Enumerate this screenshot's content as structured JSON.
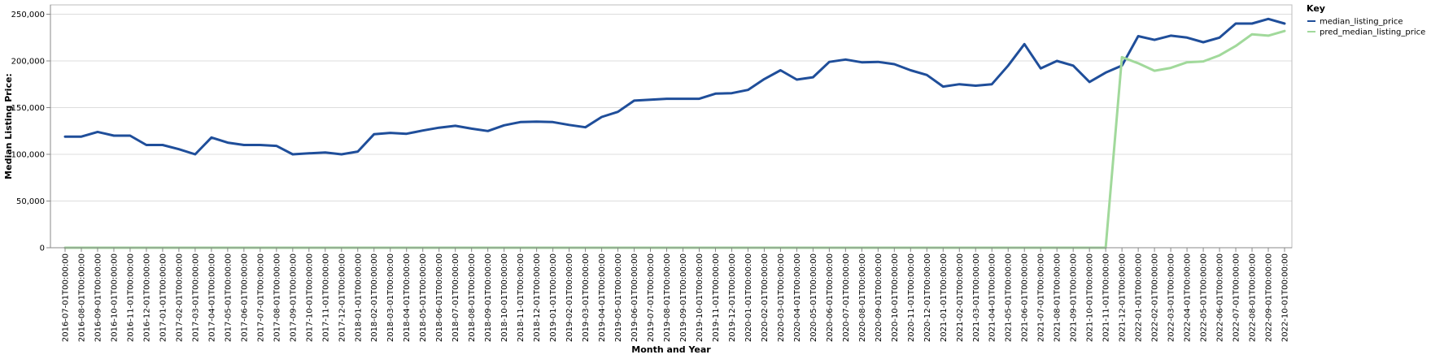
{
  "chart_data": {
    "type": "line",
    "xlabel": "Month and Year",
    "ylabel": "Median Listing Price:",
    "ylim": [
      0,
      260000
    ],
    "yticks": [
      0,
      50000,
      100000,
      150000,
      200000,
      250000
    ],
    "ytick_labels": [
      "0",
      "50,000",
      "100,000",
      "150,000",
      "200,000",
      "250,000"
    ],
    "grid": true,
    "legend": {
      "title": "Key",
      "placement": "top-right"
    },
    "categories": [
      "2016-07-01T00:00:00",
      "2016-08-01T00:00:00",
      "2016-09-01T00:00:00",
      "2016-10-01T00:00:00",
      "2016-11-01T00:00:00",
      "2016-12-01T00:00:00",
      "2017-01-01T00:00:00",
      "2017-02-01T00:00:00",
      "2017-03-01T00:00:00",
      "2017-04-01T00:00:00",
      "2017-05-01T00:00:00",
      "2017-06-01T00:00:00",
      "2017-07-01T00:00:00",
      "2017-08-01T00:00:00",
      "2017-09-01T00:00:00",
      "2017-10-01T00:00:00",
      "2017-11-01T00:00:00",
      "2017-12-01T00:00:00",
      "2018-01-01T00:00:00",
      "2018-02-01T00:00:00",
      "2018-03-01T00:00:00",
      "2018-04-01T00:00:00",
      "2018-05-01T00:00:00",
      "2018-06-01T00:00:00",
      "2018-07-01T00:00:00",
      "2018-08-01T00:00:00",
      "2018-09-01T00:00:00",
      "2018-10-01T00:00:00",
      "2018-11-01T00:00:00",
      "2018-12-01T00:00:00",
      "2019-01-01T00:00:00",
      "2019-02-01T00:00:00",
      "2019-03-01T00:00:00",
      "2019-04-01T00:00:00",
      "2019-05-01T00:00:00",
      "2019-06-01T00:00:00",
      "2019-07-01T00:00:00",
      "2019-08-01T00:00:00",
      "2019-09-01T00:00:00",
      "2019-10-01T00:00:00",
      "2019-11-01T00:00:00",
      "2019-12-01T00:00:00",
      "2020-01-01T00:00:00",
      "2020-02-01T00:00:00",
      "2020-03-01T00:00:00",
      "2020-04-01T00:00:00",
      "2020-05-01T00:00:00",
      "2020-06-01T00:00:00",
      "2020-07-01T00:00:00",
      "2020-08-01T00:00:00",
      "2020-09-01T00:00:00",
      "2020-10-01T00:00:00",
      "2020-11-01T00:00:00",
      "2020-12-01T00:00:00",
      "2021-01-01T00:00:00",
      "2021-02-01T00:00:00",
      "2021-03-01T00:00:00",
      "2021-04-01T00:00:00",
      "2021-05-01T00:00:00",
      "2021-06-01T00:00:00",
      "2021-07-01T00:00:00",
      "2021-08-01T00:00:00",
      "2021-09-01T00:00:00",
      "2021-10-01T00:00:00",
      "2021-11-01T00:00:00",
      "2021-12-01T00:00:00",
      "2022-01-01T00:00:00",
      "2022-02-01T00:00:00",
      "2022-03-01T00:00:00",
      "2022-04-01T00:00:00",
      "2022-05-01T00:00:00",
      "2022-06-01T00:00:00",
      "2022-07-01T00:00:00",
      "2022-08-01T00:00:00",
      "2022-09-01T00:00:00",
      "2022-10-01T00:00:00"
    ],
    "series": [
      {
        "name": "median_listing_price",
        "color": "#1f4e9a",
        "values": [
          119000,
          119000,
          124000,
          120000,
          120000,
          110000,
          110000,
          105500,
          100000,
          118000,
          112500,
          110000,
          110000,
          109000,
          100000,
          101000,
          102000,
          100000,
          103000,
          121500,
          123000,
          122000,
          125500,
          128500,
          130500,
          127500,
          125000,
          131000,
          134500,
          135000,
          134500,
          131500,
          129000,
          140000,
          145500,
          157500,
          158500,
          159500,
          159500,
          159500,
          165000,
          165500,
          169000,
          180500,
          190000,
          180000,
          182500,
          199000,
          201500,
          198500,
          199000,
          196500,
          190000,
          185000,
          172500,
          175000,
          173500,
          175000,
          195000,
          218000,
          192000,
          200000,
          195000,
          177500,
          187500,
          195000,
          226500,
          222500,
          227000,
          225000,
          220000,
          225000,
          240000,
          240000,
          245000,
          240000
        ]
      },
      {
        "name": "pred_median_listing_price",
        "color": "#a1d99b",
        "values": [
          0,
          0,
          0,
          0,
          0,
          0,
          0,
          0,
          0,
          0,
          0,
          0,
          0,
          0,
          0,
          0,
          0,
          0,
          0,
          0,
          0,
          0,
          0,
          0,
          0,
          0,
          0,
          0,
          0,
          0,
          0,
          0,
          0,
          0,
          0,
          0,
          0,
          0,
          0,
          0,
          0,
          0,
          0,
          0,
          0,
          0,
          0,
          0,
          0,
          0,
          0,
          0,
          0,
          0,
          0,
          0,
          0,
          0,
          0,
          0,
          0,
          0,
          0,
          0,
          0,
          204000,
          197500,
          189500,
          192500,
          198500,
          199500,
          206000,
          216000,
          228500,
          227000,
          232000
        ]
      }
    ]
  }
}
